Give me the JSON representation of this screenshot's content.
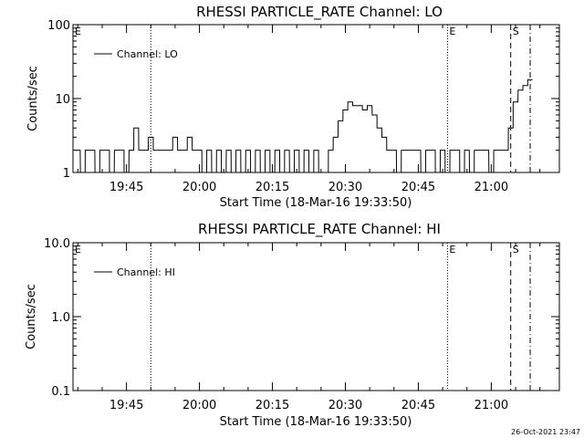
{
  "footer_date": "26-Oct-2021 23:47",
  "chart_data": [
    {
      "type": "line",
      "title": "RHESSI PARTICLE_RATE Channel: LO",
      "xlabel": "Start Time (18-Mar-16 19:33:50)",
      "ylabel": "Counts/sec",
      "yscale": "log",
      "ylim": [
        1,
        100
      ],
      "y_ticks": [
        1,
        10,
        100
      ],
      "y_tick_labels": [
        "1",
        "10",
        "100"
      ],
      "xlim": [
        "19:34",
        "21:14"
      ],
      "x_ticks": [
        "19:45",
        "20:00",
        "20:15",
        "20:30",
        "20:45",
        "21:00"
      ],
      "legend": {
        "position": "top-left",
        "entries": [
          "Channel: LO"
        ]
      },
      "markers": [
        {
          "time": "19:34",
          "label": "E",
          "style": "none"
        },
        {
          "time": "19:50",
          "label": "",
          "style": "dotted"
        },
        {
          "time": "20:51",
          "label": "E",
          "style": "dotted"
        },
        {
          "time": "21:04",
          "label": "S",
          "style": "dashed"
        },
        {
          "time": "21:08",
          "label": "",
          "style": "dashdot"
        }
      ],
      "series": [
        {
          "name": "Channel: LO",
          "x": [
            "19:35",
            "19:36",
            "19:37",
            "19:38",
            "19:39",
            "19:40",
            "19:41",
            "19:42",
            "19:43",
            "19:44",
            "19:45",
            "19:46",
            "19:47",
            "19:48",
            "19:49",
            "19:50",
            "19:51",
            "19:52",
            "19:53",
            "19:54",
            "19:55",
            "19:56",
            "19:57",
            "19:58",
            "19:59",
            "20:00",
            "20:01",
            "20:02",
            "20:03",
            "20:04",
            "20:05",
            "20:06",
            "20:07",
            "20:08",
            "20:09",
            "20:10",
            "20:11",
            "20:12",
            "20:13",
            "20:14",
            "20:15",
            "20:16",
            "20:17",
            "20:18",
            "20:19",
            "20:20",
            "20:21",
            "20:22",
            "20:23",
            "20:24",
            "20:25",
            "20:26",
            "20:27",
            "20:28",
            "20:29",
            "20:30",
            "20:31",
            "20:32",
            "20:33",
            "20:34",
            "20:35",
            "20:36",
            "20:37",
            "20:38",
            "20:39",
            "20:40",
            "20:41",
            "20:42",
            "20:43",
            "20:44",
            "20:45",
            "20:46",
            "20:47",
            "20:48",
            "20:49",
            "20:50",
            "20:51",
            "20:52",
            "20:53",
            "20:54",
            "20:55",
            "20:56",
            "20:57",
            "20:58",
            "20:59",
            "21:00",
            "21:01",
            "21:02",
            "21:03",
            "21:04",
            "21:05",
            "21:06",
            "21:07",
            "21:08"
          ],
          "values": [
            2,
            1,
            2,
            2,
            1,
            2,
            2,
            1,
            2,
            2,
            1,
            2,
            4,
            2,
            2,
            3,
            2,
            2,
            2,
            2,
            3,
            2,
            2,
            3,
            2,
            2,
            1,
            2,
            1,
            2,
            1,
            2,
            1,
            2,
            1,
            2,
            1,
            2,
            1,
            2,
            1,
            2,
            1,
            2,
            1,
            2,
            1,
            2,
            1,
            2,
            1,
            1,
            2,
            3,
            5,
            7,
            9,
            8,
            8,
            7,
            8,
            6,
            4,
            3,
            2,
            2,
            1,
            2,
            2,
            2,
            2,
            1,
            2,
            2,
            1,
            2,
            1,
            2,
            2,
            1,
            2,
            1,
            2,
            2,
            2,
            1,
            2,
            2,
            2,
            4,
            9,
            13,
            15,
            18
          ]
        }
      ]
    },
    {
      "type": "line",
      "title": "RHESSI PARTICLE_RATE Channel: HI",
      "xlabel": "Start Time (18-Mar-16 19:33:50)",
      "ylabel": "Counts/sec",
      "yscale": "log",
      "ylim": [
        0.1,
        10
      ],
      "y_ticks": [
        0.1,
        1,
        10
      ],
      "y_tick_labels": [
        "0.1",
        "1.0",
        "10.0"
      ],
      "xlim": [
        "19:34",
        "21:14"
      ],
      "x_ticks": [
        "19:45",
        "20:00",
        "20:15",
        "20:30",
        "20:45",
        "21:00"
      ],
      "legend": {
        "position": "top-left",
        "entries": [
          "Channel: HI"
        ]
      },
      "markers": [
        {
          "time": "19:34",
          "label": "E",
          "style": "none"
        },
        {
          "time": "19:50",
          "label": "",
          "style": "dotted"
        },
        {
          "time": "20:51",
          "label": "E",
          "style": "dotted"
        },
        {
          "time": "21:04",
          "label": "S",
          "style": "dashed"
        },
        {
          "time": "21:08",
          "label": "",
          "style": "dashdot"
        }
      ],
      "series": [
        {
          "name": "Channel: HI",
          "x": [],
          "values": []
        }
      ]
    }
  ]
}
